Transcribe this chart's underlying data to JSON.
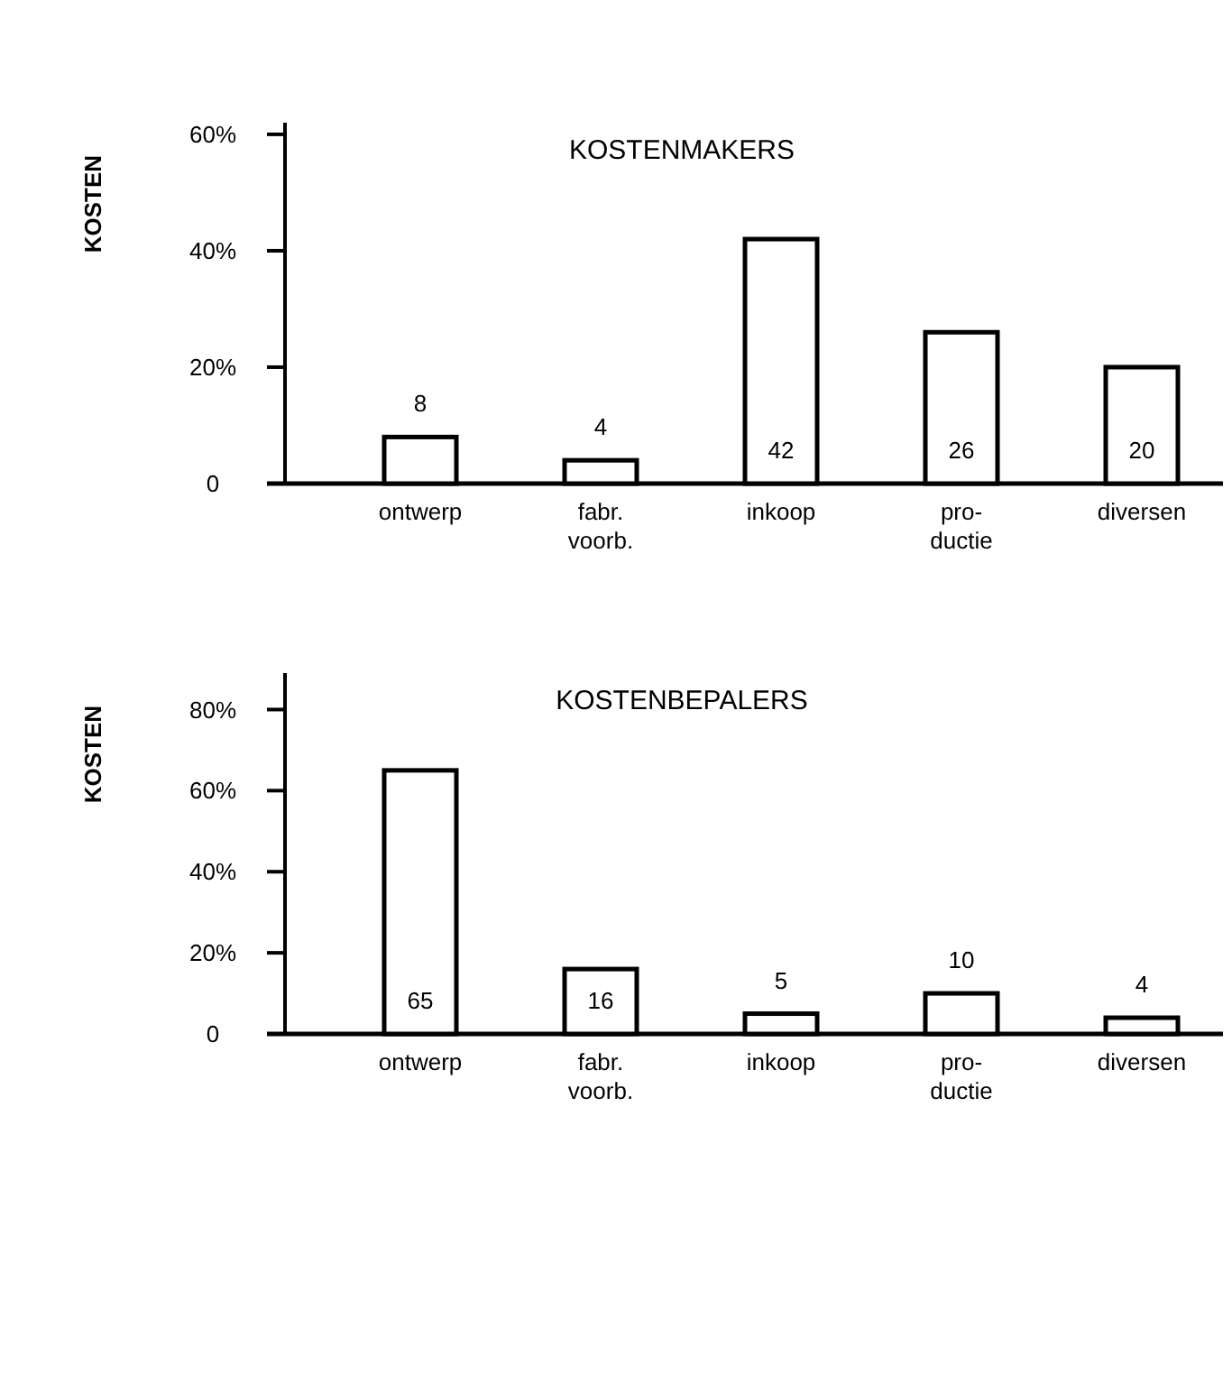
{
  "chart_data": [
    {
      "type": "bar",
      "title": "KOSTENMAKERS",
      "ylabel": "KOSTEN",
      "categories": [
        "ontwerp",
        "fabr.\nvoorb.",
        "inkoop",
        "pro-\nductie",
        "diversen"
      ],
      "values": [
        8,
        4,
        42,
        26,
        20
      ],
      "color": "#ffffff",
      "ylim": [
        0,
        62
      ],
      "yticks": [
        0,
        {
          "value": 20,
          "label": "20%"
        },
        {
          "value": 40,
          "label": "40%"
        },
        {
          "value": 60,
          "label": "60%"
        }
      ],
      "data_labels": true,
      "grid": false
    },
    {
      "type": "bar",
      "title": "KOSTENBEPALERS",
      "ylabel": "KOSTEN",
      "categories": [
        "ontwerp",
        "fabr.\nvoorb.",
        "inkoop",
        "pro-\nductie",
        "diversen"
      ],
      "values": [
        65,
        16,
        5,
        10,
        4
      ],
      "color": "#ffffff",
      "ylim": [
        0,
        89
      ],
      "yticks": [
        0,
        {
          "value": 20,
          "label": "20%"
        },
        {
          "value": 40,
          "label": "40%"
        },
        {
          "value": 60,
          "label": "60%"
        },
        {
          "value": 80,
          "label": "80%"
        }
      ],
      "data_labels": true,
      "grid": false
    }
  ]
}
